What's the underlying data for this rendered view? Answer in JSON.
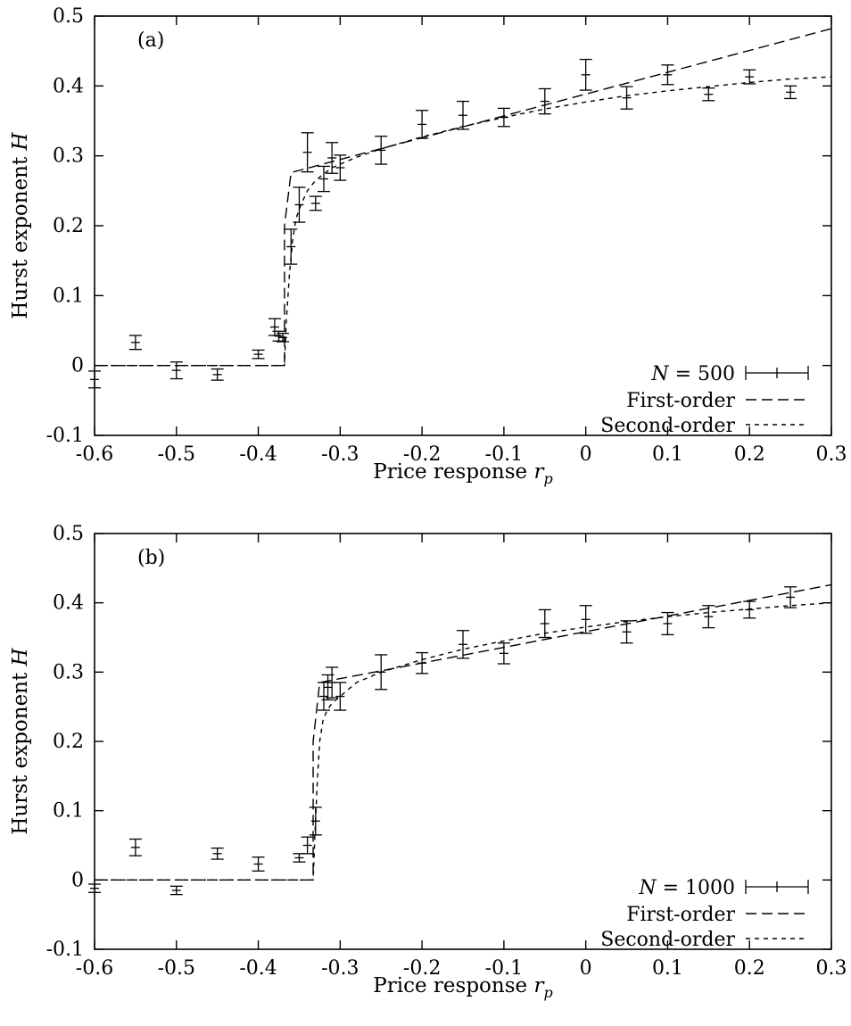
{
  "chart_data": [
    {
      "type": "scatter",
      "panel": "(a)",
      "xlabel": "Price response r_p",
      "ylabel": "Hurst exponent H",
      "xlim": [
        -0.6,
        0.3
      ],
      "ylim": [
        -0.1,
        0.5
      ],
      "xticks": [
        -0.6,
        -0.5,
        -0.4,
        -0.3,
        -0.2,
        -0.1,
        0,
        0.1,
        0.2,
        0.3
      ],
      "xtick_labels": [
        "-0.6",
        "-0.5",
        "-0.4",
        "-0.3",
        "-0.2",
        "-0.1",
        "0",
        "0.1",
        "0.2",
        "0.3"
      ],
      "yticks": [
        -0.1,
        0,
        0.1,
        0.2,
        0.3,
        0.4,
        0.5
      ],
      "ytick_labels": [
        "-0.1",
        "0",
        "0.1",
        "0.2",
        "0.3",
        "0.4",
        "0.5"
      ],
      "legend_position": "bottom-right",
      "series": [
        {
          "name": "N = 500",
          "style": "errorbars",
          "x": [
            -0.6,
            -0.55,
            -0.5,
            -0.45,
            -0.4,
            -0.38,
            -0.375,
            -0.37,
            -0.36,
            -0.35,
            -0.34,
            -0.33,
            -0.32,
            -0.31,
            -0.3,
            -0.25,
            -0.2,
            -0.15,
            -0.1,
            -0.05,
            0,
            0.05,
            0.1,
            0.15,
            0.2,
            0.25
          ],
          "y": [
            -0.02,
            0.033,
            -0.007,
            -0.013,
            0.016,
            0.055,
            0.042,
            0.04,
            0.17,
            0.23,
            0.305,
            0.232,
            0.267,
            0.297,
            0.283,
            0.308,
            0.345,
            0.358,
            0.355,
            0.378,
            0.416,
            0.383,
            0.416,
            0.388,
            0.413,
            0.391
          ],
          "err": [
            0.012,
            0.01,
            0.012,
            0.008,
            0.006,
            0.012,
            0.007,
            0.006,
            0.025,
            0.025,
            0.028,
            0.01,
            0.018,
            0.022,
            0.018,
            0.02,
            0.02,
            0.02,
            0.013,
            0.018,
            0.022,
            0.016,
            0.014,
            0.009,
            0.01,
            0.009
          ]
        },
        {
          "name": "First-order",
          "style": "long-dash",
          "x": [
            -0.6,
            -0.368,
            -0.368,
            -0.36,
            0.3
          ],
          "y": [
            0,
            0,
            0.2,
            0.276,
            0.482
          ]
        },
        {
          "name": "Second-order",
          "style": "short-dash",
          "x": [
            -0.6,
            -0.368,
            -0.366,
            -0.362,
            -0.358,
            -0.354,
            -0.348,
            -0.34,
            -0.33,
            -0.31,
            -0.28,
            -0.25,
            -0.2,
            -0.15,
            -0.1,
            -0.05,
            0,
            0.05,
            0.1,
            0.15,
            0.2,
            0.25,
            0.3
          ],
          "y": [
            0,
            0,
            0.06,
            0.13,
            0.18,
            0.21,
            0.23,
            0.25,
            0.265,
            0.283,
            0.298,
            0.31,
            0.327,
            0.342,
            0.355,
            0.367,
            0.377,
            0.386,
            0.393,
            0.399,
            0.405,
            0.41,
            0.413
          ]
        }
      ]
    },
    {
      "type": "scatter",
      "panel": "(b)",
      "xlabel": "Price response r_p",
      "ylabel": "Hurst exponent H",
      "xlim": [
        -0.6,
        0.3
      ],
      "ylim": [
        -0.1,
        0.5
      ],
      "xticks": [
        -0.6,
        -0.5,
        -0.4,
        -0.3,
        -0.2,
        -0.1,
        0,
        0.1,
        0.2,
        0.3
      ],
      "xtick_labels": [
        "-0.6",
        "-0.5",
        "-0.4",
        "-0.3",
        "-0.2",
        "-0.1",
        "0",
        "0.1",
        "0.2",
        "0.3"
      ],
      "yticks": [
        -0.1,
        0,
        0.1,
        0.2,
        0.3,
        0.4,
        0.5
      ],
      "ytick_labels": [
        "-0.1",
        "0",
        "0.1",
        "0.2",
        "0.3",
        "0.4",
        "0.5"
      ],
      "legend_position": "bottom-right",
      "series": [
        {
          "name": "N = 1000",
          "style": "errorbars",
          "x": [
            -0.6,
            -0.55,
            -0.5,
            -0.45,
            -0.4,
            -0.35,
            -0.34,
            -0.33,
            -0.32,
            -0.315,
            -0.31,
            -0.3,
            -0.25,
            -0.2,
            -0.15,
            -0.1,
            -0.05,
            0,
            0.05,
            0.1,
            0.15,
            0.2,
            0.25
          ],
          "y": [
            -0.012,
            0.047,
            -0.015,
            0.038,
            0.023,
            0.032,
            0.05,
            0.085,
            0.265,
            0.278,
            0.285,
            0.265,
            0.3,
            0.313,
            0.34,
            0.327,
            0.37,
            0.376,
            0.358,
            0.37,
            0.38,
            0.39,
            0.408
          ],
          "err": [
            0.006,
            0.012,
            0.006,
            0.008,
            0.01,
            0.006,
            0.012,
            0.02,
            0.02,
            0.018,
            0.022,
            0.02,
            0.025,
            0.015,
            0.02,
            0.015,
            0.02,
            0.02,
            0.016,
            0.016,
            0.016,
            0.012,
            0.015
          ]
        },
        {
          "name": "First-order",
          "style": "long-dash",
          "x": [
            -0.6,
            -0.333,
            -0.333,
            -0.325,
            0.3
          ],
          "y": [
            0,
            0,
            0.2,
            0.285,
            0.426
          ]
        },
        {
          "name": "Second-order",
          "style": "short-dash",
          "x": [
            -0.6,
            -0.333,
            -0.331,
            -0.328,
            -0.325,
            -0.321,
            -0.316,
            -0.31,
            -0.3,
            -0.28,
            -0.25,
            -0.2,
            -0.15,
            -0.1,
            -0.05,
            0,
            0.05,
            0.1,
            0.15,
            0.2,
            0.25,
            0.3
          ],
          "y": [
            0,
            0,
            0.06,
            0.14,
            0.2,
            0.23,
            0.245,
            0.255,
            0.265,
            0.285,
            0.3,
            0.318,
            0.333,
            0.345,
            0.356,
            0.365,
            0.373,
            0.38,
            0.386,
            0.391,
            0.396,
            0.4
          ]
        }
      ]
    }
  ]
}
